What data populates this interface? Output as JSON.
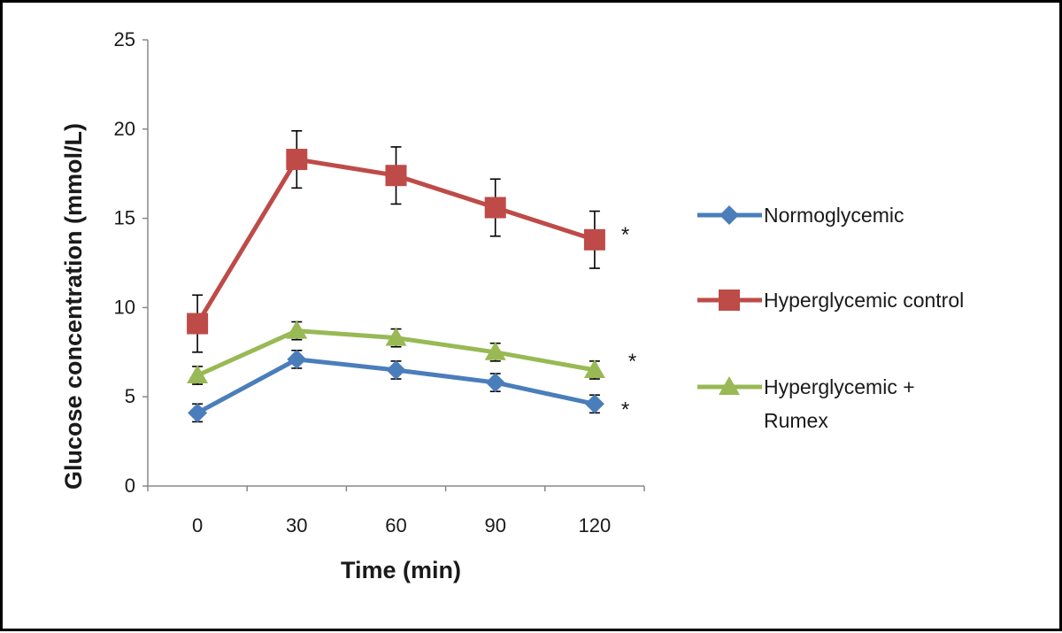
{
  "chart_data": {
    "type": "line",
    "title": "",
    "xlabel": "Time (min)",
    "ylabel": "Glucose  concentration (mmol/L)",
    "categories": [
      "0",
      "30",
      "60",
      "90",
      "120"
    ],
    "ylim": [
      0,
      25
    ],
    "yticks": [
      0,
      5,
      10,
      15,
      20,
      25
    ],
    "grid": false,
    "legend_position": "right",
    "series": [
      {
        "name": "Normoglycemic",
        "legend_lines": [
          "Normoglycemic"
        ],
        "color": "#4a7ebb",
        "marker": "diamond",
        "values": [
          4.1,
          7.1,
          6.5,
          5.8,
          4.6
        ],
        "errors": [
          0.5,
          0.5,
          0.5,
          0.5,
          0.5
        ],
        "significance": "*"
      },
      {
        "name": "Hyperglycemic control",
        "legend_lines": [
          "Hyperglycemic control"
        ],
        "color": "#be4b48",
        "marker": "square",
        "values": [
          9.1,
          18.3,
          17.4,
          15.6,
          13.8
        ],
        "errors": [
          1.6,
          1.6,
          1.6,
          1.6,
          1.6
        ],
        "significance": "*"
      },
      {
        "name": "Hyperglycemic + Rumex",
        "legend_lines": [
          "Hyperglycemic +",
          "Rumex"
        ],
        "color": "#98b954",
        "marker": "triangle",
        "values": [
          6.2,
          8.7,
          8.3,
          7.5,
          6.5
        ],
        "errors": [
          0.5,
          0.5,
          0.5,
          0.5,
          0.5
        ],
        "significance": "*"
      }
    ]
  }
}
